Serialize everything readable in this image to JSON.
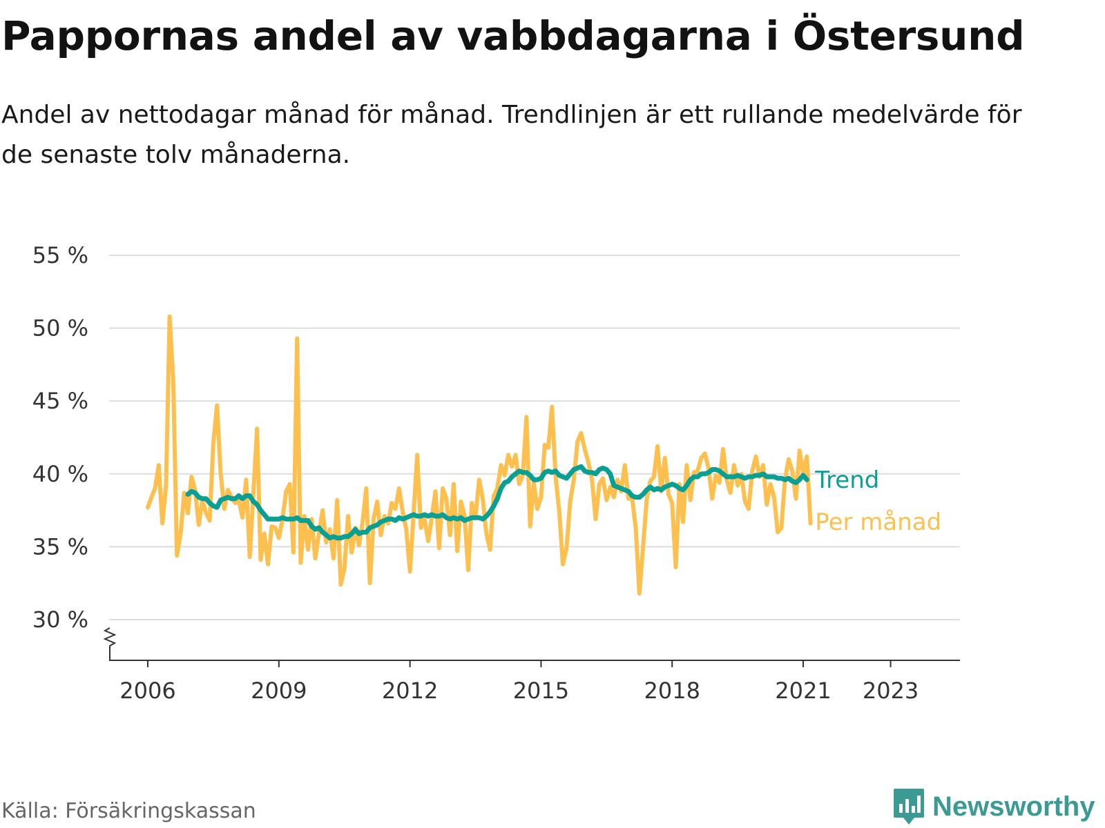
{
  "title": "Pappornas andel av vabbdagarna i Östersund",
  "subtitle": "Andel av nettodagar månad för månad. Trendlinjen är ett rullande medelvärde för de senaste tolv månaderna.",
  "source": "Källa: Försäkringskassan",
  "brand": "Newsworthy",
  "colors": {
    "monthly": "#fdc04e",
    "trend": "#0b9e92",
    "grid": "#dddddd",
    "axis": "#333333",
    "brand": "#3b9a94"
  },
  "chart_data": {
    "type": "line",
    "title": "Pappornas andel av vabbdagarna i Östersund",
    "xlabel": "",
    "ylabel": "",
    "xlim": [
      2006.0,
      2024.3
    ],
    "ylim": [
      27,
      55
    ],
    "y_ticks": [
      30,
      35,
      40,
      45,
      50,
      55
    ],
    "y_tick_labels": [
      "30 %",
      "35 %",
      "40 %",
      "45 %",
      "50 %",
      "55 %"
    ],
    "x_ticks": [
      2006,
      2009,
      2012,
      2015,
      2018,
      2021,
      2023
    ],
    "x_tick_labels": [
      "2006",
      "2009",
      "2012",
      "2015",
      "2018",
      "2021",
      "2023"
    ],
    "axis_break": true,
    "grid": true,
    "series": [
      {
        "name": "Per månad",
        "label": "Per månad",
        "start": 2006.0,
        "step": 0.083333,
        "values": [
          37.7,
          38.4,
          39.0,
          40.6,
          36.6,
          39.2,
          50.8,
          46.3,
          34.4,
          35.9,
          38.7,
          37.3,
          39.8,
          38.9,
          36.5,
          38.2,
          37.3,
          36.8,
          42.1,
          44.7,
          40.1,
          37.6,
          38.9,
          38.4,
          38.0,
          38.2,
          37.0,
          39.6,
          34.3,
          38.7,
          43.1,
          34.1,
          35.9,
          33.8,
          36.4,
          36.3,
          35.6,
          36.9,
          38.8,
          39.3,
          34.6,
          49.3,
          33.9,
          37.1,
          34.8,
          36.9,
          34.2,
          35.9,
          37.5,
          35.3,
          36.2,
          34.2,
          38.2,
          32.4,
          33.5,
          37.1,
          34.6,
          36.3,
          35.1,
          36.7,
          39.0,
          32.5,
          36.9,
          38.1,
          35.8,
          37.1,
          36.6,
          38.0,
          37.6,
          39.0,
          37.4,
          36.2,
          33.3,
          37.3,
          41.3,
          36.3,
          36.9,
          35.4,
          37.0,
          38.8,
          34.9,
          39.0,
          38.3,
          35.8,
          39.3,
          34.7,
          38.1,
          37.1,
          33.4,
          38.0,
          37.1,
          39.6,
          38.3,
          35.9,
          34.8,
          38.5,
          39.0,
          40.6,
          39.9,
          41.3,
          40.5,
          41.3,
          39.3,
          39.9,
          43.9,
          36.4,
          39.4,
          37.6,
          38.4,
          42.0,
          41.8,
          44.6,
          39.8,
          37.4,
          33.8,
          34.9,
          38.1,
          39.6,
          42.2,
          42.8,
          41.7,
          40.8,
          39.6,
          36.9,
          39.3,
          39.7,
          38.2,
          39.1,
          38.4,
          39.6,
          38.8,
          40.6,
          38.3,
          38.4,
          36.3,
          31.8,
          34.9,
          38.2,
          39.5,
          39.8,
          41.9,
          38.8,
          41.1,
          38.6,
          38.0,
          33.6,
          39.3,
          36.7,
          40.6,
          38.2,
          40.1,
          40.2,
          41.1,
          41.4,
          40.4,
          38.3,
          39.9,
          39.4,
          41.7,
          39.6,
          38.7,
          40.6,
          39.2,
          40.0,
          38.1,
          37.6,
          40.2,
          41.2,
          39.8,
          40.6,
          37.9,
          39.3,
          38.4,
          36.0,
          36.3,
          39.6,
          41.0,
          40.2,
          38.3,
          41.6,
          40.0,
          41.2,
          36.6
        ]
      },
      {
        "name": "Trend",
        "label": "Trend",
        "start": 2006.917,
        "step": 0.083333,
        "values": [
          38.6,
          38.8,
          38.7,
          38.4,
          38.3,
          38.3,
          38.0,
          37.8,
          37.7,
          38.2,
          38.3,
          38.4,
          38.3,
          38.3,
          38.5,
          38.3,
          38.5,
          38.5,
          38.1,
          37.9,
          37.5,
          37.2,
          36.9,
          36.9,
          36.9,
          36.9,
          37.0,
          36.9,
          36.9,
          36.9,
          37.0,
          36.8,
          36.8,
          36.8,
          36.4,
          36.2,
          36.3,
          36.0,
          35.8,
          35.6,
          35.7,
          35.6,
          35.6,
          35.7,
          35.7,
          35.9,
          36.2,
          35.9,
          36.0,
          36.0,
          36.3,
          36.4,
          36.5,
          36.7,
          36.8,
          36.9,
          36.9,
          36.8,
          37.0,
          36.9,
          37.0,
          37.1,
          37.2,
          37.1,
          37.1,
          37.2,
          37.1,
          37.2,
          37.1,
          37.1,
          37.2,
          37.0,
          36.9,
          37.0,
          36.9,
          37.0,
          36.8,
          36.9,
          37.0,
          37.0,
          37.0,
          36.9,
          37.1,
          37.4,
          37.8,
          38.3,
          39.0,
          39.4,
          39.5,
          39.8,
          40.0,
          40.2,
          40.1,
          40.1,
          39.9,
          39.6,
          39.6,
          39.7,
          40.1,
          40.2,
          40.1,
          40.2,
          39.9,
          39.8,
          39.7,
          40.0,
          40.3,
          40.4,
          40.5,
          40.2,
          40.1,
          40.1,
          40.0,
          40.3,
          40.4,
          40.3,
          40.0,
          39.2,
          39.1,
          39.0,
          38.9,
          38.8,
          38.5,
          38.4,
          38.4,
          38.6,
          38.9,
          39.1,
          38.9,
          39.0,
          38.9,
          39.1,
          39.2,
          39.3,
          39.2,
          39.0,
          38.9,
          39.2,
          39.6,
          39.8,
          39.8,
          40.0,
          40.0,
          40.1,
          40.3,
          40.3,
          40.2,
          40.0,
          39.8,
          39.8,
          39.8,
          39.9,
          39.8,
          39.7,
          39.8,
          39.8,
          39.9,
          39.9,
          40.0,
          39.8,
          39.8,
          39.8,
          39.7,
          39.7,
          39.6,
          39.7,
          39.5,
          39.4,
          39.6,
          39.9,
          39.6
        ]
      }
    ]
  }
}
